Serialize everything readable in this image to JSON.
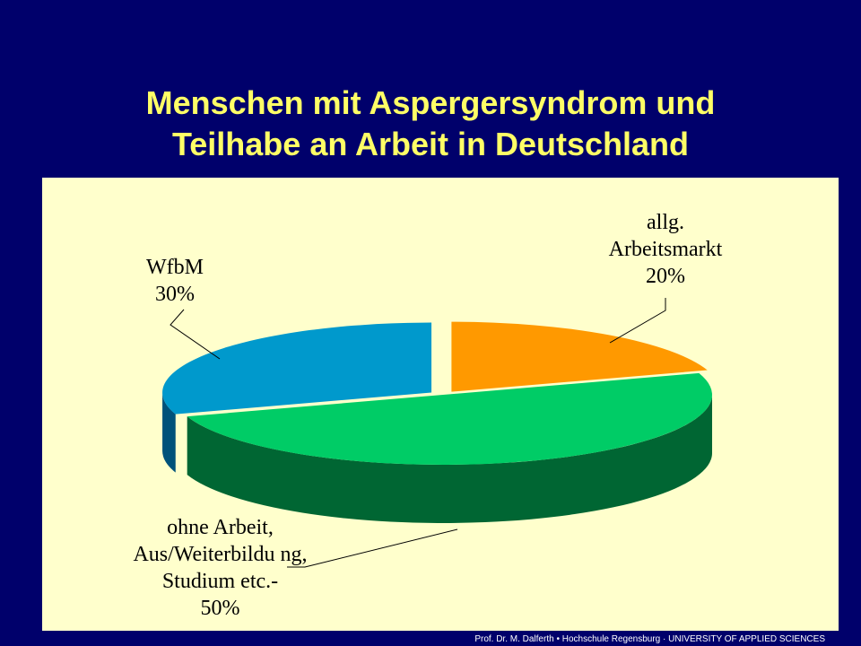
{
  "chart_data": {
    "type": "pie",
    "title": "Menschen mit Aspergersyndrom und Teilhabe an Arbeit in Deutschland",
    "categories": [
      "allg. Arbeitsmarkt",
      "ohne Arbeit, Aus/Weiterbildu ng, Studium etc.-",
      "WfbM"
    ],
    "values": [
      20,
      50,
      30
    ],
    "value_labels": [
      "20%",
      "50%",
      "30%"
    ],
    "colors": [
      "#ff9900",
      "#00cc66",
      "#0099cc"
    ],
    "side_colors": [
      "#8a4a00",
      "#006633",
      "#00527a"
    ],
    "exploded": [
      true,
      false,
      true
    ]
  },
  "footer": "Prof. Dr. M. Dalferth • Hochschule Regensburg · UNIVERSITY OF APPLIED SCIENCES"
}
